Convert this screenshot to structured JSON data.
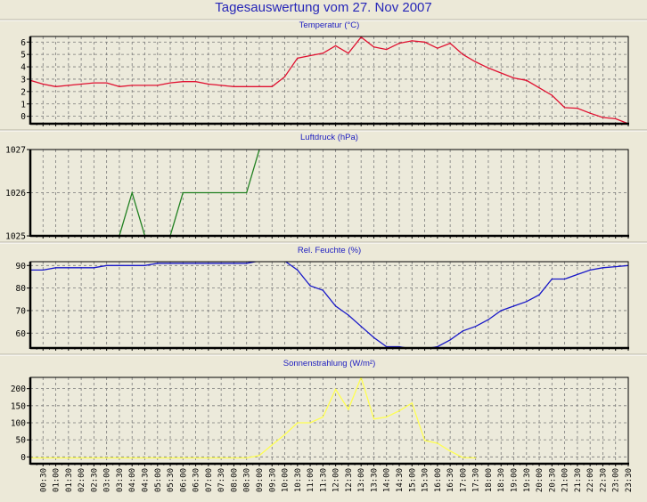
{
  "title": "Tagesauswertung vom 27. Nov 2007",
  "chart_data": [
    {
      "type": "line",
      "title": "Temperatur (°C)",
      "color": "#e01030",
      "ylim": [
        -0.6,
        6.45
      ],
      "yticks": [
        0,
        1,
        2,
        3,
        4,
        5,
        6
      ],
      "ytick_labels": [
        "0",
        "1",
        "2",
        "3",
        "4",
        "5",
        "6"
      ],
      "grid": true,
      "values": [
        2.9,
        2.6,
        2.4,
        2.5,
        2.6,
        2.7,
        2.7,
        2.4,
        2.5,
        2.5,
        2.5,
        2.7,
        2.8,
        2.8,
        2.6,
        2.5,
        2.4,
        2.4,
        2.4,
        2.4,
        3.2,
        4.7,
        4.9,
        5.1,
        5.7,
        5.1,
        6.4,
        5.6,
        5.4,
        5.9,
        6.1,
        6.0,
        5.5,
        5.9,
        5.0,
        4.4,
        3.9,
        3.5,
        3.1,
        2.9,
        2.3,
        1.7,
        0.7,
        0.65,
        0.25,
        -0.1,
        -0.2,
        -0.6
      ]
    },
    {
      "type": "line",
      "title": "Luftdruck (hPa)",
      "color": "#208020",
      "ylim": [
        1025,
        1027
      ],
      "yticks": [
        1025,
        1026,
        1027
      ],
      "ytick_labels": [
        "1025",
        "1026",
        "1027"
      ],
      "grid": true,
      "values": [
        null,
        null,
        null,
        null,
        null,
        null,
        null,
        1025,
        1026,
        1025,
        1025,
        1025,
        1026,
        1026,
        1026,
        1026,
        1026,
        1026,
        1027,
        null,
        null,
        null,
        null,
        null,
        null,
        null,
        null,
        null,
        null,
        null,
        null,
        null,
        null,
        null,
        null,
        null,
        null,
        null,
        null,
        null,
        null,
        null,
        null,
        null,
        null,
        null,
        null,
        null
      ]
    },
    {
      "type": "line",
      "title": "Rel. Feuchte (%)",
      "color": "#1818c8",
      "ylim": [
        53.4,
        91.7
      ],
      "yticks": [
        60,
        70,
        80,
        90
      ],
      "ytick_labels": [
        "60",
        "70",
        "80",
        "90"
      ],
      "grid": true,
      "values": [
        88,
        88,
        89,
        89,
        89,
        89,
        90,
        90,
        90,
        90,
        91,
        91,
        91,
        91,
        91,
        91,
        91,
        91,
        92,
        93,
        92,
        88,
        81,
        79,
        72,
        68,
        63,
        58,
        54,
        54,
        53,
        53,
        54,
        57,
        61,
        63,
        66,
        70,
        72,
        74,
        77,
        84,
        84,
        86,
        88,
        89,
        89.5,
        90
      ]
    },
    {
      "type": "line",
      "title": "Sonnenstrahlung (W/m²)",
      "color": "#ffff50",
      "ylim": [
        -20,
        233
      ],
      "yticks": [
        0,
        50,
        100,
        150,
        200
      ],
      "ytick_labels": [
        "0",
        "50",
        "100",
        "150",
        "200"
      ],
      "grid": true,
      "values": [
        -3,
        -3,
        -3,
        -3,
        -3,
        -3,
        -3,
        -3,
        -3,
        -3,
        -3,
        -3,
        -3,
        -3,
        -3,
        -3,
        -3,
        -3,
        4,
        35,
        65,
        100,
        100,
        117,
        198,
        139,
        233,
        111,
        117,
        135,
        158,
        48,
        40,
        17,
        -2,
        -3,
        null,
        null,
        null,
        null,
        null,
        null,
        null,
        null,
        null,
        null,
        null,
        null
      ]
    }
  ],
  "x_categories": [
    "00:00",
    "00:30",
    "01:00",
    "01:30",
    "02:00",
    "02:30",
    "03:00",
    "03:30",
    "04:00",
    "04:30",
    "05:00",
    "05:30",
    "06:00",
    "06:30",
    "07:00",
    "07:30",
    "08:00",
    "08:30",
    "09:00",
    "09:30",
    "10:00",
    "10:30",
    "11:00",
    "11:30",
    "12:00",
    "12:30",
    "13:00",
    "13:30",
    "14:00",
    "14:30",
    "15:00",
    "15:30",
    "16:00",
    "16:30",
    "17:00",
    "17:30",
    "18:00",
    "18:30",
    "19:00",
    "19:30",
    "20:00",
    "20:30",
    "21:00",
    "21:30",
    "22:00",
    "22:30",
    "23:00",
    "23:30"
  ],
  "x_tick_labels": [
    "00:30",
    "01:00",
    "01:30",
    "02:00",
    "02:30",
    "03:00",
    "03:30",
    "04:00",
    "04:30",
    "05:00",
    "05:30",
    "06:00",
    "06:30",
    "07:00",
    "07:30",
    "08:00",
    "08:30",
    "09:00",
    "09:30",
    "10:00",
    "10:30",
    "11:00",
    "11:30",
    "12:00",
    "12:30",
    "13:00",
    "13:30",
    "14:00",
    "14:30",
    "15:00",
    "15:30",
    "16:00",
    "16:30",
    "17:00",
    "17:30",
    "18:00",
    "18:30",
    "19:00",
    "19:30",
    "20:00",
    "20:30",
    "21:00",
    "21:30",
    "22:00",
    "22:30",
    "23:00",
    "23:30"
  ]
}
